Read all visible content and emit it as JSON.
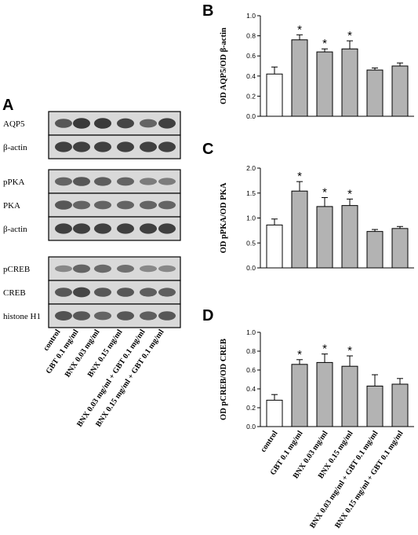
{
  "panel_a": {
    "letter": "A",
    "blot_groups": [
      {
        "rows": [
          "AQP5",
          "β-actin"
        ]
      },
      {
        "rows": [
          "pPKA",
          "PKA",
          "β-actin"
        ]
      },
      {
        "rows": [
          "pCREB",
          "CREB",
          "histone H1"
        ]
      }
    ],
    "lanes": [
      "control",
      "GBT 0.1 mg/ml",
      "BNX 0.03 mg/ml",
      "BNX 0.15 mg/ml",
      "BNX 0.03 mg/ml + GBT 0.1 mg/ml",
      "BNX 0.15 mg/ml + GBT 0.1 mg/ml"
    ]
  },
  "colors": {
    "control_bar": "#ffffff",
    "treated_bar": "#b3b3b3",
    "stroke": "#000000",
    "blot_bg": "#d9d9d9",
    "band": "#2a2a2a"
  },
  "chart_data": [
    {
      "id": "B",
      "letter": "B",
      "type": "bar",
      "categories": [
        "control",
        "GBT 0.1 mg/ml",
        "BNX 0.03 mg/ml",
        "BNX 0.15 mg/ml",
        "BNX 0.03 mg/ml + GBT 0.1 mg/ml",
        "BNX 0.15 mg/ml + GBT 0.1 mg/ml"
      ],
      "values": [
        0.42,
        0.76,
        0.64,
        0.67,
        0.46,
        0.5
      ],
      "errors": [
        0.07,
        0.05,
        0.03,
        0.08,
        0.02,
        0.03
      ],
      "significant": [
        false,
        true,
        true,
        true,
        false,
        false
      ],
      "marker": "*",
      "ylabel": "OD AQP5/OD β-actin",
      "ylim": [
        0,
        1.0
      ],
      "yticks": [
        "0.0",
        "0.2",
        "0.4",
        "0.6",
        "0.8",
        "1.0"
      ],
      "show_category_labels": false
    },
    {
      "id": "C",
      "letter": "C",
      "type": "bar",
      "categories": [
        "control",
        "GBT 0.1 mg/ml",
        "BNX 0.03 mg/ml",
        "BNX 0.15 mg/ml",
        "BNX 0.03 mg/ml + GBT 0.1 mg/ml",
        "BNX 0.15 mg/ml + GBT 0.1 mg/ml"
      ],
      "values": [
        0.86,
        1.54,
        1.23,
        1.25,
        0.73,
        0.79
      ],
      "errors": [
        0.12,
        0.19,
        0.18,
        0.13,
        0.04,
        0.04
      ],
      "significant": [
        false,
        true,
        true,
        true,
        false,
        false
      ],
      "marker": "*",
      "ylabel": "OD pPKA/OD PKA",
      "ylim": [
        0,
        2.0
      ],
      "yticks": [
        "0.0",
        "0.5",
        "1.0",
        "1.5",
        "2.0"
      ],
      "show_category_labels": false
    },
    {
      "id": "D",
      "letter": "D",
      "type": "bar",
      "categories": [
        "control",
        "GBT 0.1 mg/ml",
        "BNX 0.03 mg/ml",
        "BNX 0.15 mg/ml",
        "BNX 0.03 mg/ml + GBT 0.1 mg/ml",
        "BNX 0.15 mg/ml + GBT 0.1 mg/ml"
      ],
      "values": [
        0.28,
        0.66,
        0.68,
        0.64,
        0.43,
        0.45
      ],
      "errors": [
        0.06,
        0.05,
        0.09,
        0.11,
        0.12,
        0.06
      ],
      "significant": [
        false,
        true,
        true,
        true,
        false,
        false
      ],
      "marker": "*",
      "ylabel": "OD pCREB/OD CREB",
      "ylim": [
        0,
        1.0
      ],
      "yticks": [
        "0.0",
        "0.2",
        "0.4",
        "0.6",
        "0.8",
        "1.0"
      ],
      "show_category_labels": true
    }
  ]
}
